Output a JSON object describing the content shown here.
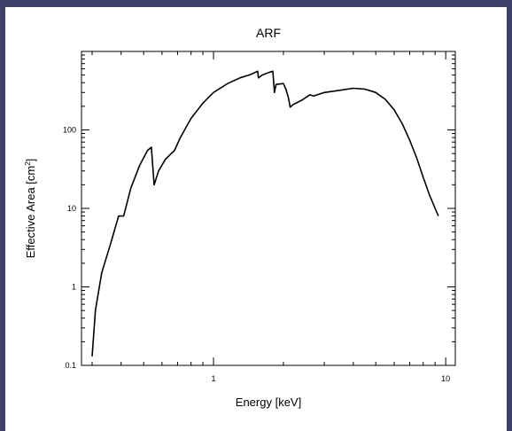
{
  "chart_data": {
    "type": "line",
    "title": "ARF",
    "xlabel": "Energy [keV]",
    "ylabel_main": "Effective Area [cm",
    "ylabel_sup": "2",
    "ylabel_close": "]",
    "xscale": "log",
    "yscale": "log",
    "xlim": [
      0.27,
      11
    ],
    "ylim": [
      0.1,
      1000
    ],
    "x_ticks": [
      {
        "value": 1,
        "label": "1"
      },
      {
        "value": 10,
        "label": "10"
      }
    ],
    "y_ticks": [
      {
        "value": 0.1,
        "label": "0.1"
      },
      {
        "value": 1,
        "label": "1"
      },
      {
        "value": 10,
        "label": "10"
      },
      {
        "value": 100,
        "label": "100"
      }
    ],
    "grid": false,
    "series": [
      {
        "x": [
          0.3,
          0.31,
          0.33,
          0.36,
          0.39,
          0.41,
          0.44,
          0.48,
          0.52,
          0.54,
          0.555,
          0.58,
          0.62,
          0.68,
          0.72,
          0.8,
          0.9,
          1.0,
          1.15,
          1.3,
          1.45,
          1.55,
          1.56,
          1.62,
          1.75,
          1.8,
          1.83,
          1.86,
          2.0,
          2.05,
          2.1,
          2.14,
          2.2,
          2.4,
          2.6,
          2.7,
          3.0,
          3.5,
          4.0,
          4.5,
          5.0,
          5.5,
          6.0,
          6.5,
          7.0,
          7.5,
          8.0,
          8.5,
          9.0,
          9.3
        ],
        "y": [
          0.13,
          0.5,
          1.5,
          3.5,
          8,
          8,
          18,
          35,
          55,
          60,
          20,
          30,
          42,
          55,
          80,
          140,
          220,
          300,
          390,
          460,
          510,
          560,
          460,
          500,
          545,
          560,
          300,
          380,
          390,
          330,
          260,
          195,
          210,
          240,
          280,
          270,
          300,
          320,
          340,
          330,
          300,
          245,
          180,
          120,
          74,
          44,
          25,
          15,
          10,
          8
        ]
      }
    ]
  }
}
